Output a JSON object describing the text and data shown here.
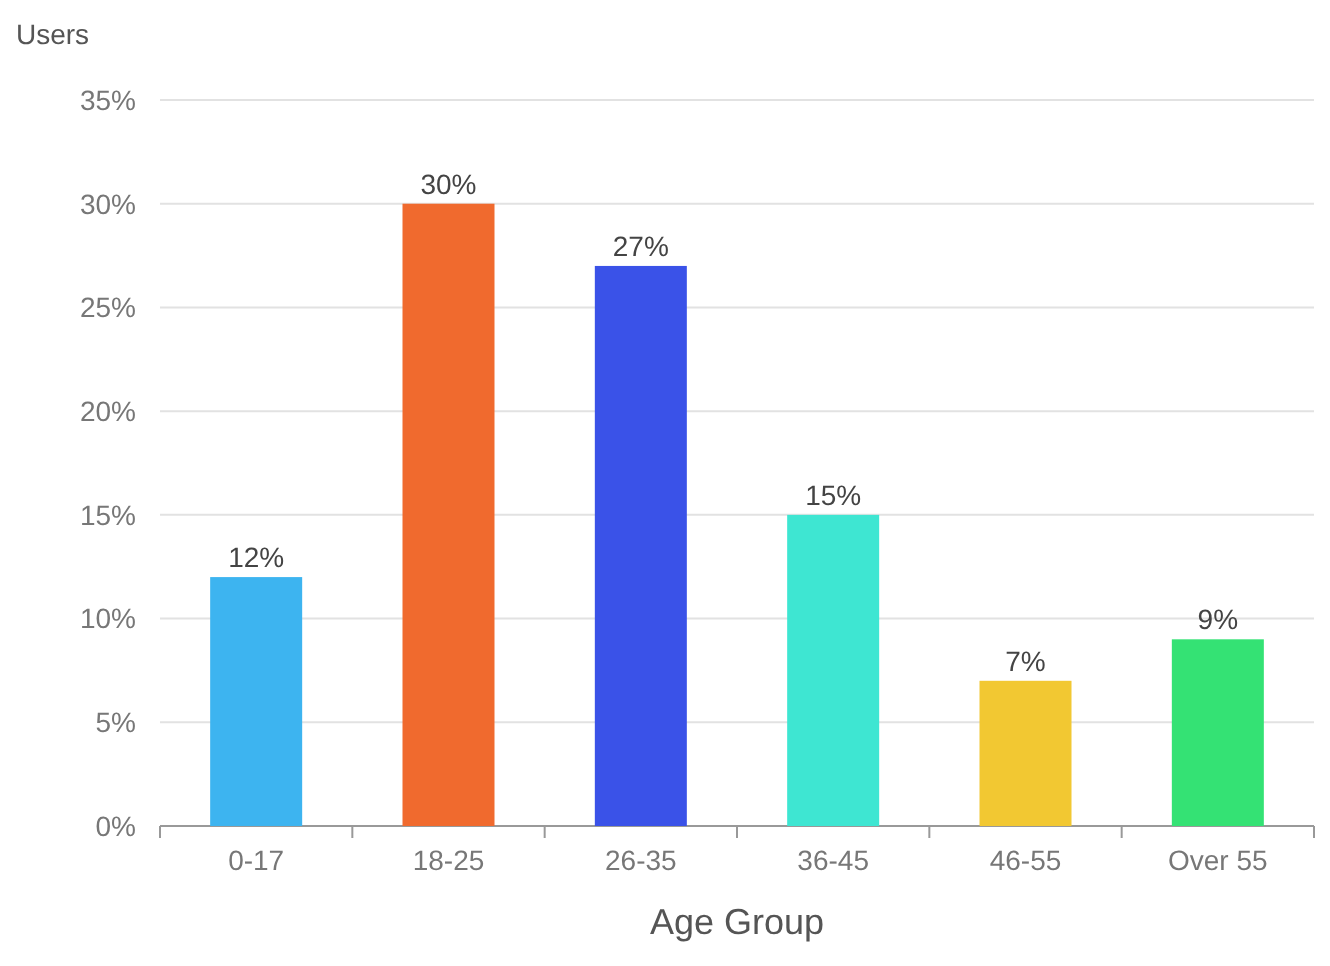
{
  "chart_data": {
    "type": "bar",
    "ylabel": "Users",
    "xlabel": "Age Group",
    "categories": [
      "0-17",
      "18-25",
      "26-35",
      "36-45",
      "46-55",
      "Over 55"
    ],
    "values": [
      12,
      30,
      27,
      15,
      7,
      9
    ],
    "value_labels": [
      "12%",
      "30%",
      "27%",
      "15%",
      "7%",
      "9%"
    ],
    "colors": [
      "#3db4f0",
      "#f06a2e",
      "#3a52e8",
      "#3ee6d2",
      "#f2c832",
      "#34e274"
    ],
    "ylim": [
      0,
      35
    ],
    "yticks": [
      {
        "value": 0,
        "label": "0%"
      },
      {
        "value": 5,
        "label": "5%"
      },
      {
        "value": 10,
        "label": "10%"
      },
      {
        "value": 15,
        "label": "15%"
      },
      {
        "value": 20,
        "label": "20%"
      },
      {
        "value": 25,
        "label": "25%"
      },
      {
        "value": 30,
        "label": "30%"
      },
      {
        "value": 35,
        "label": "35%"
      }
    ],
    "grid": "y"
  }
}
